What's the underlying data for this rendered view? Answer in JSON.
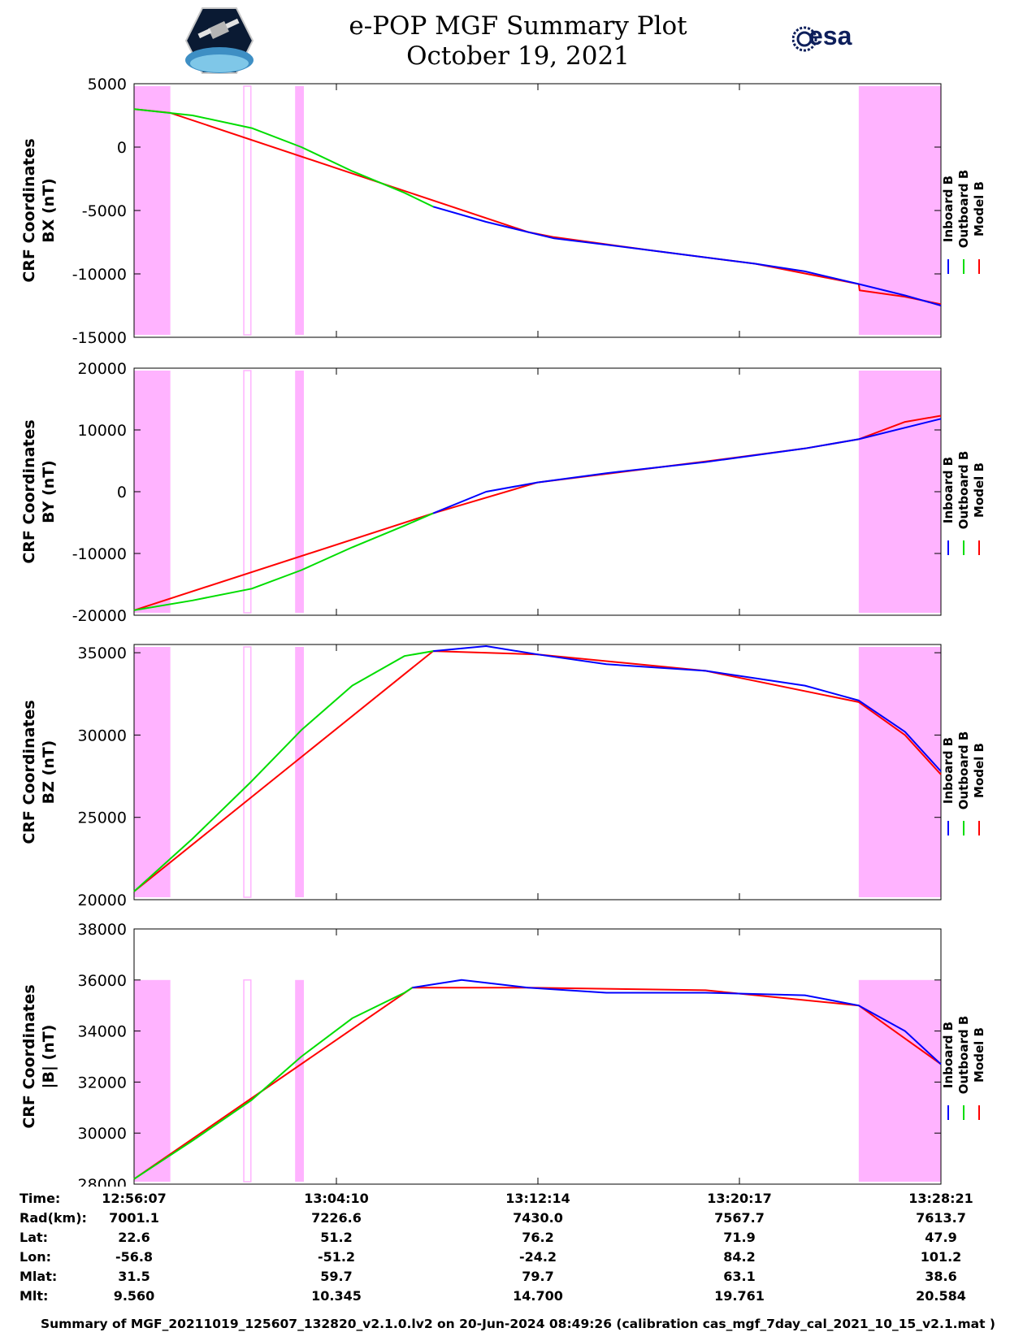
{
  "header": {
    "title_line1": "e-POP MGF Summary Plot",
    "title_line2": "October 19, 2021",
    "logo_left": "CASSIOPE",
    "logo_right": "esa"
  },
  "legend": [
    "Inboard B",
    "Outboard B",
    "Model B"
  ],
  "colors": {
    "inboard": "#0000ff",
    "outboard": "#00dd00",
    "model": "#ff0000",
    "shade": "#ffb3ff"
  },
  "chart_data": [
    {
      "type": "line",
      "ylabel": [
        "CRF Coordinates",
        "BX (nT)"
      ],
      "ylim": [
        -15000,
        5000
      ],
      "yticks": [
        5000,
        0,
        -5000,
        -10000,
        -15000
      ],
      "ytick_labels": [
        "5000",
        "0",
        "-5000",
        "-10000",
        "-15000"
      ],
      "xlim": [
        "12:56:07",
        "13:28:21"
      ],
      "shaded_time_ranges": [
        [
          "12:56:07",
          "12:57:34"
        ],
        [
          "13:00:30",
          "13:00:47"
        ],
        [
          "13:02:33",
          "13:02:54"
        ],
        [
          "13:25:04",
          "13:28:21"
        ]
      ],
      "series": [
        {
          "name": "Outboard B",
          "time": [
            "12:56:07",
            "12:58:27",
            "13:00:49",
            "13:02:48",
            "13:04:50",
            "13:06:55",
            "13:08:04"
          ],
          "values": [
            3000,
            2500,
            1500,
            0,
            -1900,
            -3600,
            -4700
          ]
        },
        {
          "name": "Inboard B",
          "time": [
            "13:08:04",
            "13:10:11",
            "13:11:51",
            "13:12:54",
            "13:14:59",
            "13:16:58",
            "13:18:57",
            "13:20:56",
            "13:22:55",
            "13:25:04",
            "13:26:55",
            "13:28:21"
          ],
          "values": [
            -4700,
            -5900,
            -6700,
            -7200,
            -7700,
            -8200,
            -8700,
            -9200,
            -9800,
            -10800,
            -11700,
            -12500
          ]
        },
        {
          "name": "Model B",
          "time": [
            "12:56:07",
            "12:57:34",
            "13:11:51",
            "13:12:54",
            "13:16:58",
            "13:20:56",
            "13:25:04",
            "13:25:06",
            "13:26:55",
            "13:28:21"
          ],
          "values": [
            3000,
            2700,
            -6700,
            -7100,
            -8200,
            -9200,
            -10800,
            -11300,
            -11800,
            -12400
          ]
        }
      ]
    },
    {
      "type": "line",
      "ylabel": [
        "CRF Coordinates",
        "BY (nT)"
      ],
      "ylim": [
        -20000,
        20000
      ],
      "yticks": [
        20000,
        10000,
        0,
        -10000,
        -20000
      ],
      "ytick_labels": [
        "20000",
        "10000",
        "0",
        "-10000",
        "-20000"
      ],
      "xlim": [
        "12:56:07",
        "13:28:21"
      ],
      "shaded_time_ranges": [
        [
          "12:56:07",
          "12:57:34"
        ],
        [
          "13:00:30",
          "13:00:47"
        ],
        [
          "13:02:33",
          "13:02:54"
        ],
        [
          "13:25:04",
          "13:28:21"
        ]
      ],
      "series": [
        {
          "name": "Outboard B",
          "time": [
            "12:56:07",
            "12:58:27",
            "13:00:49",
            "13:02:48",
            "13:04:50",
            "13:06:55",
            "13:08:04"
          ],
          "values": [
            -19200,
            -17600,
            -15700,
            -12700,
            -9000,
            -5500,
            -3500
          ]
        },
        {
          "name": "Inboard B",
          "time": [
            "13:08:04",
            "13:10:11",
            "13:12:14",
            "13:14:59",
            "13:18:57",
            "13:22:55",
            "13:25:04",
            "13:28:21"
          ],
          "values": [
            -3500,
            0,
            1500,
            3000,
            4800,
            7000,
            8500,
            11800
          ]
        },
        {
          "name": "Model B",
          "time": [
            "12:56:07",
            "13:08:04",
            "13:12:14",
            "13:18:57",
            "13:22:55",
            "13:25:04",
            "13:26:55",
            "13:28:21"
          ],
          "values": [
            -19200,
            -3500,
            1500,
            4900,
            7000,
            8500,
            11300,
            12300
          ]
        }
      ]
    },
    {
      "type": "line",
      "ylabel": [
        "CRF Coordinates",
        "BZ (nT)"
      ],
      "ylim": [
        20000,
        35500
      ],
      "yticks": [
        35000,
        30000,
        25000,
        20000
      ],
      "ytick_labels": [
        "35000",
        "30000",
        "25000",
        "20000"
      ],
      "xlim": [
        "12:56:07",
        "13:28:21"
      ],
      "shaded_time_ranges": [
        [
          "12:56:07",
          "12:57:34"
        ],
        [
          "13:00:30",
          "13:00:47"
        ],
        [
          "13:02:33",
          "13:02:54"
        ],
        [
          "13:25:04",
          "13:28:21"
        ]
      ],
      "series": [
        {
          "name": "Outboard B",
          "time": [
            "12:56:07",
            "12:58:27",
            "13:00:49",
            "13:02:48",
            "13:04:50",
            "13:06:55",
            "13:08:04"
          ],
          "values": [
            20500,
            23700,
            27200,
            30300,
            33000,
            34800,
            35100
          ]
        },
        {
          "name": "Inboard B",
          "time": [
            "13:08:04",
            "13:10:11",
            "13:12:14",
            "13:14:59",
            "13:18:57",
            "13:22:55",
            "13:25:04",
            "13:26:55",
            "13:28:21"
          ],
          "values": [
            35100,
            35400,
            34900,
            34300,
            33900,
            33000,
            32100,
            30200,
            27800
          ]
        },
        {
          "name": "Model B",
          "time": [
            "12:56:07",
            "13:08:04",
            "13:12:14",
            "13:18:57",
            "13:25:04",
            "13:26:55",
            "13:28:21"
          ],
          "values": [
            20500,
            35100,
            34900,
            33900,
            32000,
            30000,
            27600
          ]
        }
      ]
    },
    {
      "type": "line",
      "ylabel": [
        "CRF Coordinates",
        "|B| (nT)"
      ],
      "ylim": [
        28000,
        38000
      ],
      "yticks": [
        38000,
        36000,
        34000,
        32000,
        30000,
        28000
      ],
      "ytick_labels": [
        "38000",
        "36000",
        "34000",
        "32000",
        "30000",
        "28000"
      ],
      "xlim": [
        "12:56:07",
        "13:28:21"
      ],
      "shaded_time_ranges": [
        [
          "12:56:07",
          "12:57:34"
        ],
        [
          "13:00:30",
          "13:00:47"
        ],
        [
          "13:02:33",
          "13:02:54"
        ],
        [
          "13:25:04",
          "13:28:21"
        ]
      ],
      "series": [
        {
          "name": "Outboard B",
          "time": [
            "12:56:07",
            "12:58:27",
            "13:00:49",
            "13:02:48",
            "13:04:50",
            "13:06:55",
            "13:07:14"
          ],
          "values": [
            28200,
            29700,
            31300,
            33000,
            34500,
            35500,
            35700
          ]
        },
        {
          "name": "Inboard B",
          "time": [
            "13:07:14",
            "13:09:12",
            "13:11:51",
            "13:14:59",
            "13:18:57",
            "13:22:55",
            "13:25:04",
            "13:26:55",
            "13:28:21"
          ],
          "values": [
            35700,
            36000,
            35700,
            35500,
            35500,
            35400,
            35000,
            34000,
            32700
          ]
        },
        {
          "name": "Model B",
          "time": [
            "12:56:07",
            "13:07:14",
            "13:11:51",
            "13:18:57",
            "13:25:04",
            "13:28:21"
          ],
          "values": [
            28200,
            35700,
            35700,
            35600,
            35000,
            32700
          ]
        }
      ]
    }
  ],
  "info_table": {
    "labels": [
      "Time:",
      "Rad(km):",
      "Lat:",
      "Lon:",
      "Mlat:",
      "Mlt:"
    ],
    "columns": [
      [
        "12:56:07",
        "7001.1",
        "22.6",
        "-56.8",
        "31.5",
        "9.560"
      ],
      [
        "13:04:10",
        "7226.6",
        "51.2",
        "-51.2",
        "59.7",
        "10.345"
      ],
      [
        "13:12:14",
        "7430.0",
        "76.2",
        "-24.2",
        "79.7",
        "14.700"
      ],
      [
        "13:20:17",
        "7567.7",
        "71.9",
        "84.2",
        "63.1",
        "19.761"
      ],
      [
        "13:28:21",
        "7613.7",
        "47.9",
        "101.2",
        "38.6",
        "20.584"
      ]
    ]
  },
  "footer": "Summary of MGF_20211019_125607_132820_v2.1.0.lv2 on 20-Jun-2024 08:49:26 (calibration cas_mgf_7day_cal_2021_10_15_v2.1.mat )"
}
